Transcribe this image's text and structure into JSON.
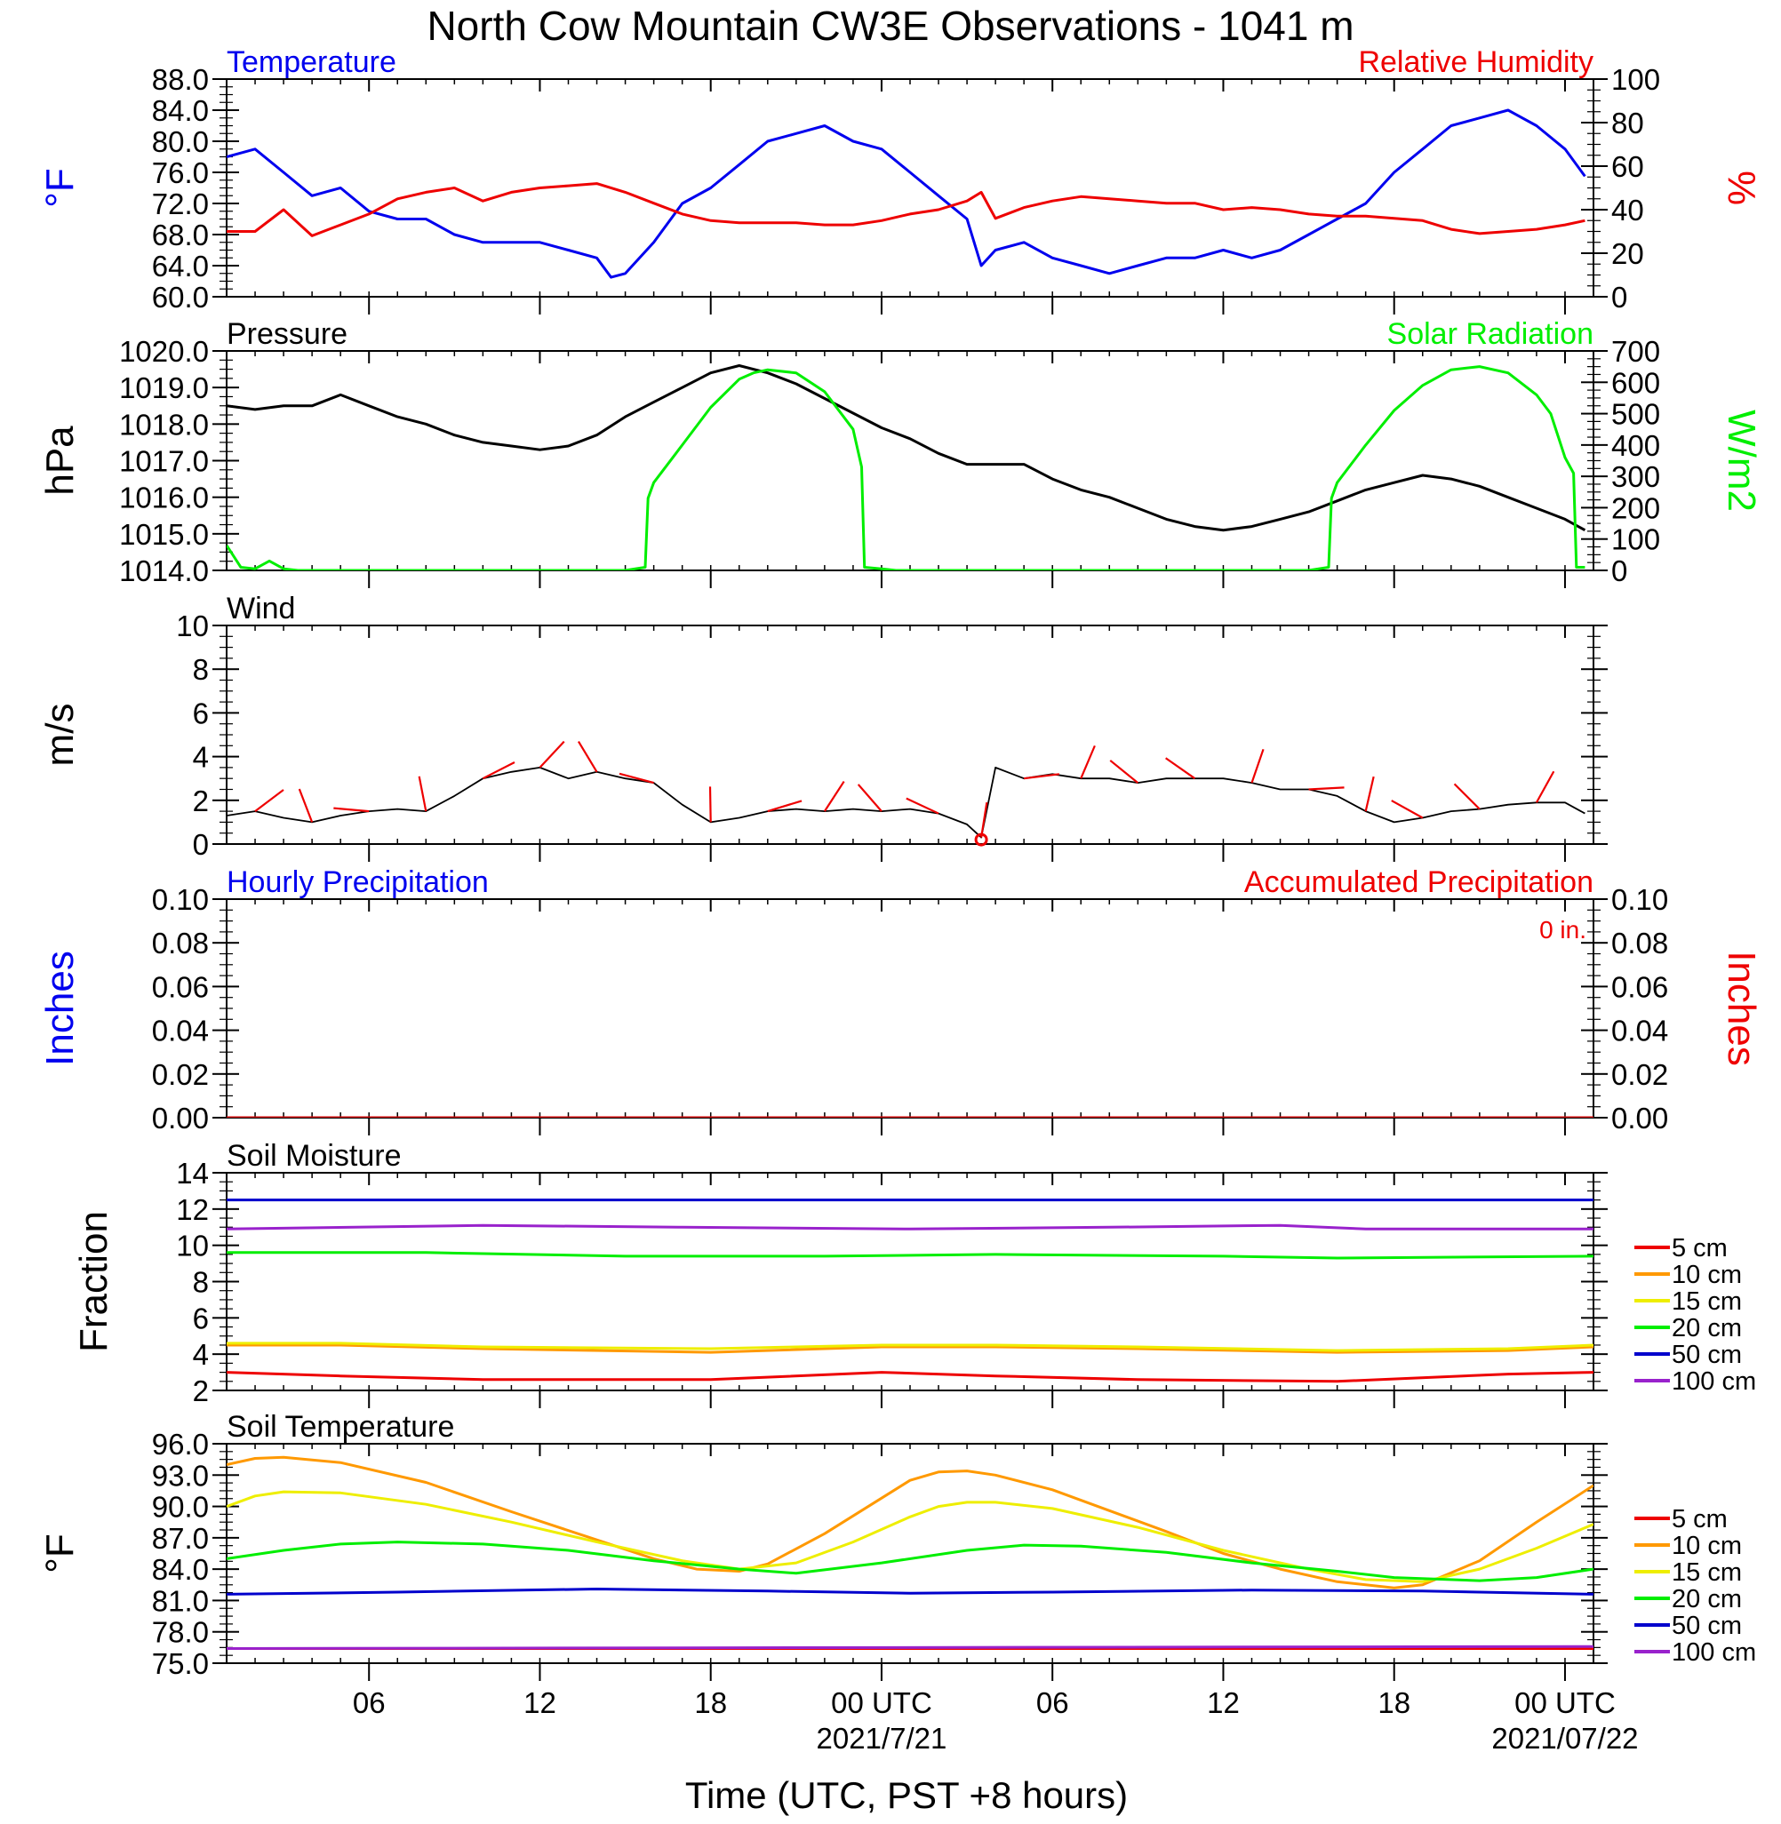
{
  "title": "North Cow Mountain CW3E Observations - 1041 m",
  "xlabel": "Time (UTC, PST +8 hours)",
  "x_ticks": [
    {
      "hour": 6,
      "label": "06",
      "date": ""
    },
    {
      "hour": 12,
      "label": "12",
      "date": ""
    },
    {
      "hour": 18,
      "label": "18",
      "date": ""
    },
    {
      "hour": 24,
      "label": "00 UTC",
      "date": "2021/7/21"
    },
    {
      "hour": 30,
      "label": "06",
      "date": ""
    },
    {
      "hour": 36,
      "label": "12",
      "date": ""
    },
    {
      "hour": 42,
      "label": "18",
      "date": ""
    },
    {
      "hour": 48,
      "label": "00 UTC",
      "date": "2021/07/22"
    }
  ],
  "colors": {
    "temp": "#0000ee",
    "rh": "#ee0000",
    "pressure": "#000000",
    "solar": "#00ee00",
    "wind": "#000000",
    "barb": "#ee0000"
  },
  "chart_data": [
    {
      "type": "line",
      "title_left": "Temperature",
      "title_right": "Relative Humidity",
      "ylabel_left": "°F",
      "ylabel_right": "%",
      "xlim": [
        1,
        49
      ],
      "ylim_left": [
        60,
        88
      ],
      "ylim_right": [
        0,
        100
      ],
      "y_ticks_left": [
        "60.0",
        "64.0",
        "68.0",
        "72.0",
        "76.0",
        "80.0",
        "84.0",
        "88.0"
      ],
      "y_ticks_right": [
        "0",
        "20",
        "40",
        "60",
        "80",
        "100"
      ],
      "series": [
        {
          "name": "Temperature",
          "axis": "left",
          "color": "#0000ee",
          "x": [
            1,
            2,
            3,
            4,
            5,
            6,
            7,
            8,
            9,
            10,
            11,
            12,
            13,
            14,
            14.5,
            15,
            16,
            17,
            18,
            19,
            20,
            21,
            22,
            23,
            24,
            25,
            26,
            27,
            27.5,
            28,
            29,
            30,
            31,
            32,
            33,
            34,
            35,
            36,
            37,
            38,
            39,
            40,
            41,
            42,
            43,
            44,
            45,
            46,
            47,
            48,
            48.7
          ],
          "y": [
            78,
            79,
            76,
            73,
            74,
            71,
            70,
            70,
            68,
            67,
            67,
            67,
            66,
            65,
            62.5,
            63,
            67,
            72,
            74,
            77,
            80,
            81,
            82,
            80,
            79,
            76,
            73,
            70,
            64,
            66,
            67,
            65,
            64,
            63,
            64,
            65,
            65,
            66,
            65,
            66,
            68,
            70,
            72,
            76,
            79,
            82,
            83,
            84,
            82,
            79,
            75.5
          ]
        },
        {
          "name": "Relative Humidity",
          "axis": "right",
          "color": "#ee0000",
          "x": [
            1,
            2,
            3,
            4,
            5,
            6,
            7,
            8,
            9,
            10,
            11,
            12,
            13,
            14,
            15,
            16,
            17,
            18,
            19,
            20,
            21,
            22,
            23,
            24,
            25,
            26,
            27,
            27.5,
            28,
            29,
            30,
            31,
            32,
            33,
            34,
            35,
            36,
            37,
            38,
            39,
            40,
            41,
            42,
            43,
            44,
            45,
            46,
            47,
            48,
            48.7
          ],
          "y": [
            30,
            30,
            40,
            28,
            33,
            38,
            45,
            48,
            50,
            44,
            48,
            50,
            51,
            52,
            48,
            43,
            38,
            35,
            34,
            34,
            34,
            33,
            33,
            35,
            38,
            40,
            44,
            48,
            36,
            41,
            44,
            46,
            45,
            44,
            43,
            43,
            40,
            41,
            40,
            38,
            37,
            37,
            36,
            35,
            31,
            29,
            30,
            31,
            33,
            35
          ]
        }
      ]
    },
    {
      "type": "line",
      "title_left": "Pressure",
      "title_right": "Solar Radiation",
      "ylabel_left": "hPa",
      "ylabel_right": "W/m2",
      "ylabel_right_sup": "2",
      "xlim": [
        1,
        49
      ],
      "ylim_left": [
        1014,
        1020
      ],
      "ylim_right": [
        0,
        700
      ],
      "y_ticks_left": [
        "1014.0",
        "1015.0",
        "1016.0",
        "1017.0",
        "1018.0",
        "1019.0",
        "1020.0"
      ],
      "y_ticks_right": [
        "0",
        "100",
        "200",
        "300",
        "400",
        "500",
        "600",
        "700"
      ],
      "series": [
        {
          "name": "Pressure",
          "axis": "left",
          "color": "#000000",
          "x": [
            1,
            2,
            3,
            4,
            5,
            6,
            7,
            8,
            9,
            10,
            11,
            12,
            13,
            14,
            15,
            16,
            17,
            18,
            19,
            20,
            21,
            22,
            23,
            24,
            25,
            26,
            27,
            28,
            29,
            30,
            31,
            32,
            33,
            34,
            35,
            36,
            37,
            38,
            39,
            40,
            41,
            42,
            43,
            44,
            45,
            46,
            47,
            48,
            48.7
          ],
          "y": [
            1018.5,
            1018.4,
            1018.5,
            1018.5,
            1018.8,
            1018.5,
            1018.2,
            1018,
            1017.7,
            1017.5,
            1017.4,
            1017.3,
            1017.4,
            1017.7,
            1018.2,
            1018.6,
            1019,
            1019.4,
            1019.6,
            1019.4,
            1019.1,
            1018.7,
            1018.3,
            1017.9,
            1017.6,
            1017.2,
            1016.9,
            1016.9,
            1016.9,
            1016.5,
            1016.2,
            1016,
            1015.7,
            1015.4,
            1015.2,
            1015.1,
            1015.2,
            1015.4,
            1015.6,
            1015.9,
            1016.2,
            1016.4,
            1016.6,
            1016.5,
            1016.3,
            1016,
            1015.7,
            1015.4,
            1015.1
          ]
        },
        {
          "name": "Solar Radiation",
          "axis": "right",
          "color": "#00ee00",
          "x": [
            1,
            1.5,
            2,
            2.5,
            3,
            3.5,
            4,
            5,
            10,
            15,
            15.7,
            15.8,
            16,
            17,
            18,
            19,
            19.5,
            20,
            21,
            22,
            23,
            23.3,
            23.4,
            24,
            24.5,
            25,
            26,
            30,
            35,
            39,
            39.7,
            39.8,
            40,
            41,
            42,
            43,
            44,
            45,
            46,
            47,
            47.5,
            48,
            48.3,
            48.4,
            48.7
          ],
          "y": [
            80,
            10,
            5,
            30,
            5,
            0,
            0,
            0,
            0,
            0,
            10,
            230,
            280,
            400,
            520,
            610,
            630,
            640,
            630,
            570,
            450,
            330,
            10,
            5,
            0,
            0,
            0,
            0,
            0,
            0,
            10,
            230,
            280,
            400,
            510,
            590,
            640,
            650,
            630,
            560,
            500,
            360,
            310,
            10,
            10
          ]
        }
      ]
    },
    {
      "type": "line",
      "title_left": "Wind",
      "ylabel_left": "m/s",
      "xlim": [
        1,
        49
      ],
      "ylim_left": [
        0,
        10
      ],
      "y_ticks_left": [
        "0",
        "2",
        "4",
        "6",
        "8",
        "10"
      ],
      "series": [
        {
          "name": "Wind",
          "axis": "left",
          "color": "#000000",
          "x": [
            1,
            2,
            3,
            4,
            5,
            6,
            7,
            8,
            9,
            10,
            11,
            12,
            13,
            14,
            15,
            16,
            17,
            18,
            19,
            20,
            21,
            22,
            23,
            24,
            25,
            26,
            27,
            27.5,
            28,
            29,
            30,
            31,
            32,
            33,
            34,
            35,
            36,
            37,
            38,
            39,
            40,
            41,
            42,
            43,
            44,
            45,
            46,
            47,
            48,
            48.7
          ],
          "y": [
            1.3,
            1.5,
            1.2,
            1.0,
            1.3,
            1.5,
            1.6,
            1.5,
            2.2,
            3.0,
            3.3,
            3.5,
            3.0,
            3.3,
            3.0,
            2.8,
            1.8,
            1.0,
            1.2,
            1.5,
            1.6,
            1.5,
            1.6,
            1.5,
            1.6,
            1.4,
            0.9,
            0.3,
            3.5,
            3.0,
            3.2,
            3.0,
            3.0,
            2.8,
            3.0,
            3.0,
            3.0,
            2.8,
            2.5,
            2.5,
            2.2,
            1.5,
            1.0,
            1.2,
            1.5,
            1.6,
            1.8,
            1.9,
            1.9,
            1.4
          ]
        }
      ]
    },
    {
      "type": "line",
      "title_left": "Hourly Precipitation",
      "title_right": "Accumulated Precipitation",
      "annotation": "0 in.",
      "ylabel_left": "Inches",
      "ylabel_right": "Inches",
      "xlim": [
        1,
        49
      ],
      "ylim_left": [
        0,
        0.1
      ],
      "ylim_right": [
        0,
        0.1
      ],
      "y_ticks_left": [
        "0.00",
        "0.02",
        "0.04",
        "0.06",
        "0.08",
        "0.10"
      ],
      "y_ticks_right": [
        "0.00",
        "0.02",
        "0.04",
        "0.06",
        "0.08",
        "0.10"
      ],
      "series": [
        {
          "name": "Accumulated Precipitation",
          "axis": "left",
          "color": "#cc0000",
          "x": [
            1,
            49
          ],
          "y": [
            0,
            0
          ]
        }
      ]
    },
    {
      "type": "line",
      "title_left": "Soil Moisture",
      "ylabel_left": "Fraction",
      "xlim": [
        1,
        49
      ],
      "ylim_left": [
        2,
        14
      ],
      "y_ticks_left": [
        "2",
        "4",
        "6",
        "8",
        "10",
        "12",
        "14"
      ],
      "legend": "right",
      "series": [
        {
          "name": "5 cm",
          "color": "#ee0000",
          "x": [
            1,
            5,
            10,
            18,
            24,
            28,
            33,
            40,
            46,
            49
          ],
          "y": [
            3.0,
            2.8,
            2.6,
            2.6,
            3.0,
            2.8,
            2.6,
            2.5,
            2.9,
            3.0
          ]
        },
        {
          "name": "10 cm",
          "color": "#ff9900",
          "x": [
            1,
            5,
            10,
            18,
            24,
            28,
            33,
            40,
            46,
            49
          ],
          "y": [
            4.5,
            4.5,
            4.3,
            4.1,
            4.4,
            4.4,
            4.3,
            4.1,
            4.2,
            4.4
          ]
        },
        {
          "name": "15 cm",
          "color": "#eeee00",
          "x": [
            1,
            5,
            10,
            18,
            24,
            28,
            33,
            40,
            46,
            49
          ],
          "y": [
            4.6,
            4.6,
            4.4,
            4.3,
            4.5,
            4.5,
            4.4,
            4.2,
            4.3,
            4.5
          ]
        },
        {
          "name": "20 cm",
          "color": "#00ee00",
          "x": [
            1,
            8,
            15,
            22,
            28,
            36,
            40,
            49
          ],
          "y": [
            9.6,
            9.6,
            9.4,
            9.4,
            9.5,
            9.4,
            9.3,
            9.4
          ]
        },
        {
          "name": "50 cm",
          "color": "#0000cc",
          "x": [
            1,
            49
          ],
          "y": [
            12.5,
            12.5
          ]
        },
        {
          "name": "100 cm",
          "color": "#9922cc",
          "x": [
            1,
            10,
            17,
            25,
            32,
            38,
            41,
            49
          ],
          "y": [
            10.9,
            11.1,
            11.0,
            10.9,
            11.0,
            11.1,
            10.9,
            10.9
          ]
        }
      ]
    },
    {
      "type": "line",
      "title_left": "Soil Temperature",
      "ylabel_left": "°F",
      "xlim": [
        1,
        49
      ],
      "ylim_left": [
        75,
        96
      ],
      "y_ticks_left": [
        "75.0",
        "78.0",
        "81.0",
        "84.0",
        "87.0",
        "90.0",
        "93.0",
        "96.0"
      ],
      "legend": "right",
      "series": [
        {
          "name": "5 cm",
          "color": "#ee0000",
          "x": [
            1,
            49
          ],
          "y": [
            76.4,
            76.4
          ]
        },
        {
          "name": "10 cm",
          "color": "#ff9900",
          "x": [
            1,
            2,
            3,
            5,
            8,
            11,
            14,
            16,
            17.5,
            19,
            20,
            22,
            24,
            25,
            26,
            27,
            28,
            30,
            32,
            34,
            36,
            38,
            40,
            42,
            43,
            45,
            47,
            49
          ],
          "y": [
            94.0,
            94.6,
            94.7,
            94.2,
            92.3,
            89.5,
            86.8,
            85.0,
            84.0,
            83.8,
            84.5,
            87.4,
            90.8,
            92.5,
            93.3,
            93.4,
            93.0,
            91.6,
            89.6,
            87.6,
            85.5,
            84.0,
            82.8,
            82.2,
            82.5,
            84.8,
            88.5,
            92.0
          ]
        },
        {
          "name": "15 cm",
          "color": "#eeee00",
          "x": [
            1,
            2,
            3,
            5,
            8,
            11,
            14,
            17,
            19,
            21,
            23,
            25,
            26,
            27,
            28,
            30,
            33,
            36,
            39,
            41,
            43,
            45,
            47,
            49
          ],
          "y": [
            90.0,
            91.0,
            91.4,
            91.3,
            90.2,
            88.5,
            86.6,
            84.8,
            84.0,
            84.6,
            86.6,
            89.0,
            90.0,
            90.4,
            90.4,
            89.8,
            88.0,
            85.8,
            84.0,
            83.0,
            82.8,
            84.0,
            86.0,
            88.3
          ]
        },
        {
          "name": "20 cm",
          "color": "#00ee00",
          "x": [
            1,
            3,
            5,
            7,
            10,
            13,
            16,
            19,
            21,
            24,
            27,
            29,
            31,
            34,
            37,
            40,
            42,
            45,
            47,
            49
          ],
          "y": [
            85.0,
            85.8,
            86.4,
            86.6,
            86.4,
            85.8,
            84.8,
            84.0,
            83.6,
            84.6,
            85.8,
            86.3,
            86.2,
            85.6,
            84.6,
            83.8,
            83.2,
            82.9,
            83.2,
            84.0
          ]
        },
        {
          "name": "50 cm",
          "color": "#0000cc",
          "x": [
            1,
            7,
            14,
            20,
            25,
            30,
            37,
            43,
            49
          ],
          "y": [
            81.6,
            81.8,
            82.1,
            81.9,
            81.7,
            81.8,
            82.0,
            81.9,
            81.6
          ]
        },
        {
          "name": "100 cm",
          "color": "#9922cc",
          "x": [
            1,
            49
          ],
          "y": [
            76.4,
            76.6
          ]
        }
      ]
    }
  ]
}
